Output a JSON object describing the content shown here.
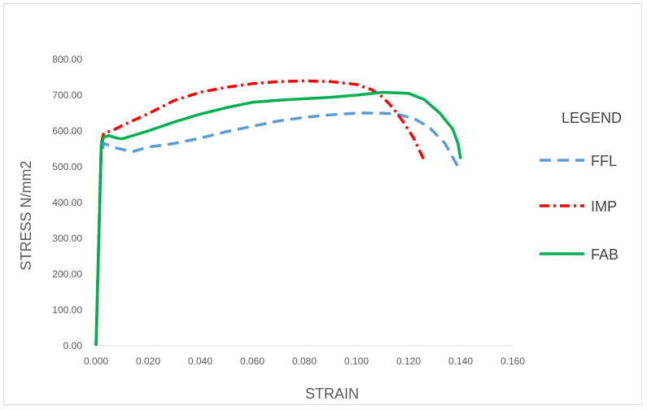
{
  "chart_data": {
    "type": "line",
    "title": "",
    "xlabel": "STRAIN",
    "ylabel": "STRESS N/mm2",
    "xlim": [
      0,
      0.16
    ],
    "ylim": [
      0,
      800
    ],
    "x_ticks": [
      "0.000",
      "0.020",
      "0.040",
      "0.060",
      "0.080",
      "0.100",
      "0.120",
      "0.140",
      "0.160"
    ],
    "y_ticks": [
      "0.00",
      "100.00",
      "200.00",
      "300.00",
      "400.00",
      "500.00",
      "600.00",
      "700.00",
      "800.00"
    ],
    "grid": false,
    "legend": {
      "title": "LEGEND",
      "placement": "right"
    },
    "series": [
      {
        "name": "FFL",
        "color": "#5b9bd5",
        "dash": "dashed",
        "points": [
          [
            0,
            0
          ],
          [
            0.002,
            540
          ],
          [
            0.003,
            565
          ],
          [
            0.008,
            552
          ],
          [
            0.014,
            542
          ],
          [
            0.02,
            555
          ],
          [
            0.03,
            565
          ],
          [
            0.04,
            580
          ],
          [
            0.05,
            598
          ],
          [
            0.06,
            613
          ],
          [
            0.07,
            628
          ],
          [
            0.08,
            638
          ],
          [
            0.09,
            645
          ],
          [
            0.1,
            650
          ],
          [
            0.108,
            650
          ],
          [
            0.115,
            648
          ],
          [
            0.122,
            635
          ],
          [
            0.128,
            610
          ],
          [
            0.134,
            565
          ],
          [
            0.14,
            487
          ]
        ]
      },
      {
        "name": "IMP",
        "color": "#ff0000",
        "dash": "dashdot",
        "points": [
          [
            0,
            0
          ],
          [
            0.002,
            565
          ],
          [
            0.003,
            595
          ],
          [
            0.006,
            600
          ],
          [
            0.01,
            615
          ],
          [
            0.02,
            648
          ],
          [
            0.03,
            685
          ],
          [
            0.04,
            708
          ],
          [
            0.05,
            722
          ],
          [
            0.06,
            732
          ],
          [
            0.07,
            738
          ],
          [
            0.08,
            740
          ],
          [
            0.09,
            738
          ],
          [
            0.1,
            730
          ],
          [
            0.106,
            715
          ],
          [
            0.11,
            695
          ],
          [
            0.114,
            665
          ],
          [
            0.118,
            625
          ],
          [
            0.122,
            580
          ],
          [
            0.126,
            518
          ]
        ]
      },
      {
        "name": "FAB",
        "color": "#00b050",
        "dash": "solid",
        "points": [
          [
            0,
            0
          ],
          [
            0.002,
            560
          ],
          [
            0.003,
            583
          ],
          [
            0.005,
            587
          ],
          [
            0.008,
            580
          ],
          [
            0.01,
            578
          ],
          [
            0.02,
            600
          ],
          [
            0.03,
            625
          ],
          [
            0.04,
            647
          ],
          [
            0.05,
            665
          ],
          [
            0.06,
            680
          ],
          [
            0.07,
            686
          ],
          [
            0.08,
            690
          ],
          [
            0.09,
            694
          ],
          [
            0.1,
            700
          ],
          [
            0.11,
            708
          ],
          [
            0.12,
            705
          ],
          [
            0.126,
            688
          ],
          [
            0.132,
            650
          ],
          [
            0.137,
            605
          ],
          [
            0.139,
            565
          ],
          [
            0.14,
            522
          ]
        ]
      }
    ]
  }
}
